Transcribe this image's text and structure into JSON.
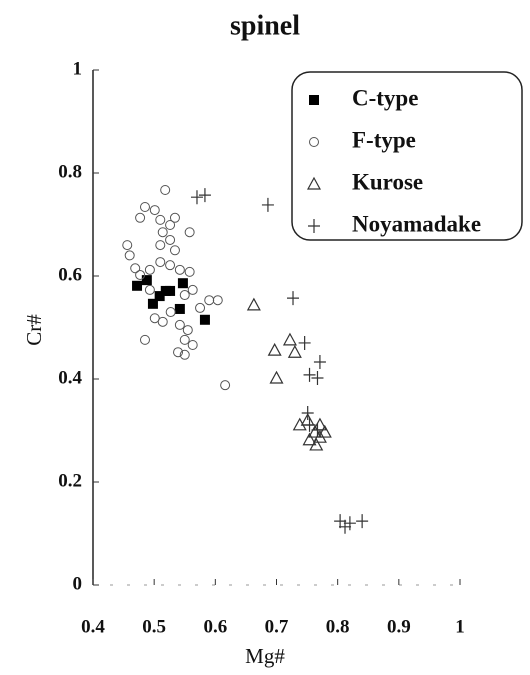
{
  "chart_data": {
    "type": "scatter",
    "title": "spinel",
    "x_label": "Mg#",
    "y_label": "Cr#",
    "xlim": [
      0.4,
      1
    ],
    "ylim": [
      0,
      1
    ],
    "xticks": [
      0.4,
      0.5,
      0.6,
      0.7,
      0.8,
      0.9,
      1
    ],
    "yticks": [
      0,
      0.2,
      0.4,
      0.6,
      0.8,
      1
    ],
    "legend": "upper right",
    "series": [
      {
        "name": "C-type",
        "marker": "square",
        "color": "#000000",
        "x": [
          0.472,
          0.488,
          0.498,
          0.509,
          0.519,
          0.526,
          0.542,
          0.547,
          0.583
        ],
        "values": [
          0.581,
          0.592,
          0.546,
          0.561,
          0.571,
          0.571,
          0.536,
          0.586,
          0.515
        ]
      },
      {
        "name": "F-type",
        "marker": "circle",
        "color": "#555555",
        "x": [
          0.518,
          0.485,
          0.501,
          0.477,
          0.51,
          0.526,
          0.534,
          0.514,
          0.456,
          0.46,
          0.51,
          0.526,
          0.534,
          0.469,
          0.477,
          0.493,
          0.51,
          0.526,
          0.542,
          0.558,
          0.558,
          0.55,
          0.501,
          0.514,
          0.527,
          0.542,
          0.55,
          0.539,
          0.55,
          0.563,
          0.485,
          0.575,
          0.59,
          0.604,
          0.616,
          0.563,
          0.493,
          0.555
        ],
        "values": [
          0.767,
          0.734,
          0.728,
          0.713,
          0.709,
          0.699,
          0.713,
          0.685,
          0.66,
          0.64,
          0.66,
          0.67,
          0.65,
          0.615,
          0.602,
          0.612,
          0.627,
          0.621,
          0.612,
          0.608,
          0.685,
          0.563,
          0.518,
          0.511,
          0.53,
          0.505,
          0.476,
          0.452,
          0.447,
          0.466,
          0.476,
          0.538,
          0.553,
          0.553,
          0.388,
          0.573,
          0.573,
          0.495
        ]
      },
      {
        "name": "Kurose",
        "marker": "triangle",
        "color": "#333333",
        "x": [
          0.663,
          0.697,
          0.722,
          0.73,
          0.7,
          0.738,
          0.751,
          0.763,
          0.771,
          0.754,
          0.765,
          0.771,
          0.779
        ],
        "values": [
          0.544,
          0.456,
          0.476,
          0.452,
          0.402,
          0.311,
          0.32,
          0.297,
          0.311,
          0.282,
          0.272,
          0.287,
          0.297
        ]
      },
      {
        "name": "Noyamadake",
        "marker": "plus",
        "color": "#333333",
        "x": [
          0.57,
          0.583,
          0.686,
          0.727,
          0.746,
          0.771,
          0.754,
          0.767,
          0.751,
          0.754,
          0.767,
          0.804,
          0.812,
          0.82,
          0.84
        ],
        "values": [
          0.753,
          0.757,
          0.738,
          0.557,
          0.47,
          0.433,
          0.408,
          0.402,
          0.334,
          0.311,
          0.301,
          0.124,
          0.113,
          0.12,
          0.124
        ]
      }
    ]
  }
}
